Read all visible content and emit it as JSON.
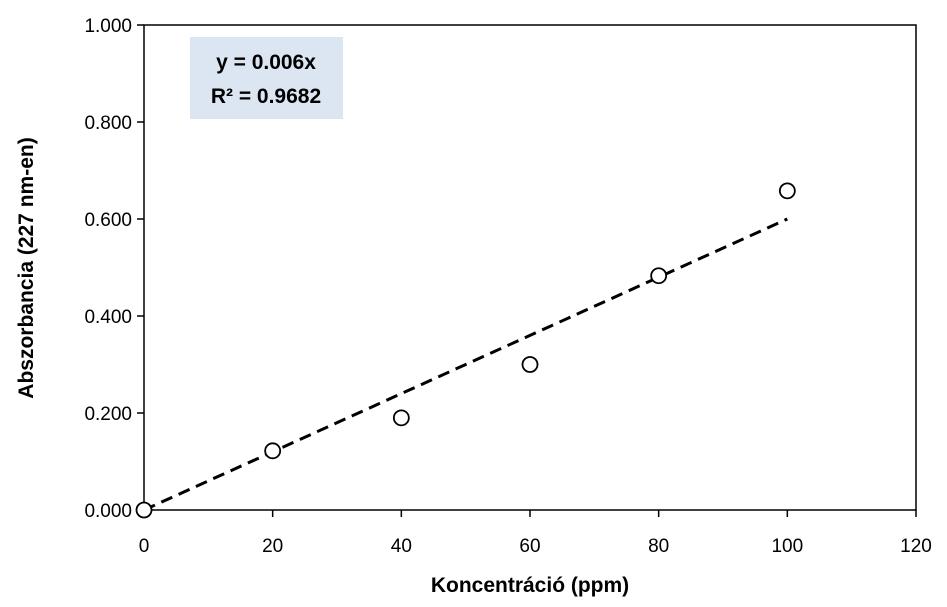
{
  "chart_data": {
    "type": "scatter",
    "xlabel": "Koncentráció (ppm)",
    "ylabel": "Abszorbancia (227 nm-en)",
    "xlim": [
      0,
      120
    ],
    "ylim": [
      0,
      1
    ],
    "x_ticks": [
      "0",
      "20",
      "40",
      "60",
      "80",
      "100",
      "120"
    ],
    "y_ticks": [
      "0.000",
      "0.200",
      "0.400",
      "0.600",
      "0.800",
      "1.000"
    ],
    "grid": false,
    "legend": "none",
    "series": [
      {
        "x": [
          0,
          20,
          40,
          60,
          80,
          100
        ],
        "y": [
          0.0,
          0.122,
          0.19,
          0.3,
          0.483,
          0.658
        ],
        "marker": "open-circle",
        "color": "#000000"
      }
    ],
    "trendline": {
      "type": "linear-through-origin",
      "slope": 0.006,
      "x_range": [
        0,
        100
      ],
      "style": "dashed",
      "color": "#000000"
    },
    "annotation": {
      "lines": [
        "y = 0.006x",
        "R² = 0.9682"
      ],
      "background": "#dce6f2"
    }
  }
}
